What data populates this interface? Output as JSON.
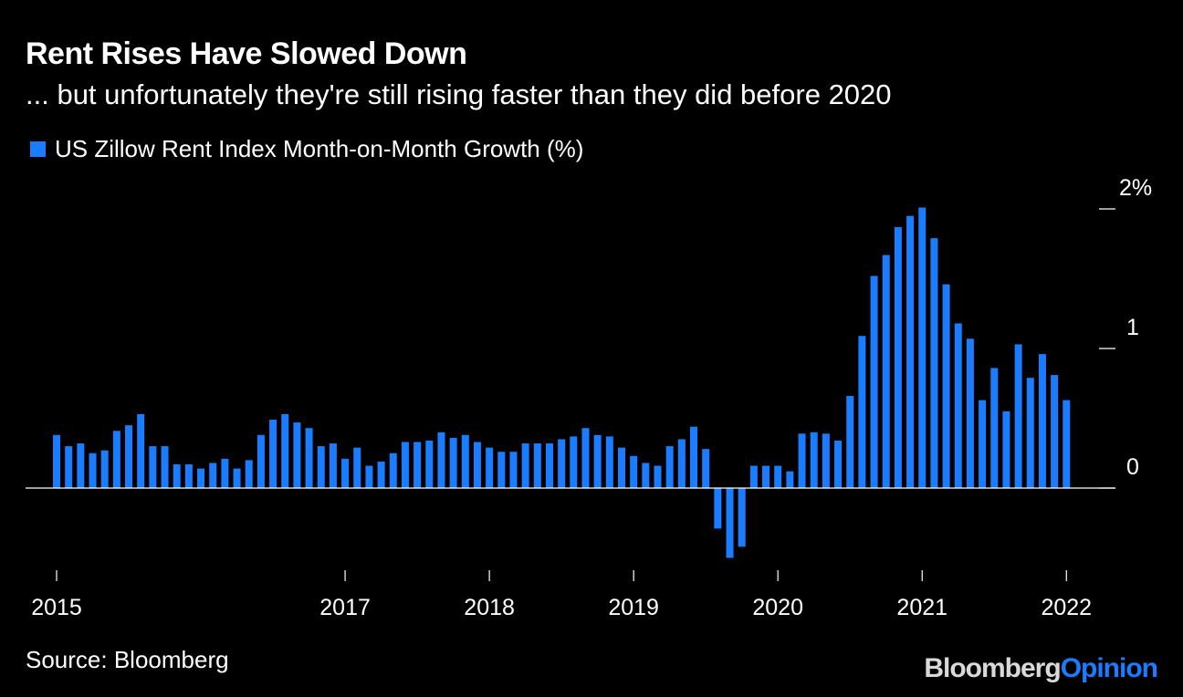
{
  "title": "Rent Rises Have Slowed Down",
  "subtitle": "... but unfortunately they're still rising faster than they did before 2020",
  "source": "Source: Bloomberg",
  "logo": {
    "part1": "Bloomberg",
    "part2": "Opinion"
  },
  "colors": {
    "background": "#000000",
    "bar": "#1a7cff",
    "text": "#ffffff",
    "axis": "#ffffff"
  },
  "chart_data": {
    "type": "bar",
    "series": [
      {
        "name": "US Zillow Rent Index Month-on-Month Growth (%)",
        "start_month": "2015-01",
        "values": [
          0.38,
          0.3,
          0.32,
          0.25,
          0.27,
          0.41,
          0.45,
          0.53,
          0.3,
          0.3,
          0.17,
          0.17,
          0.14,
          0.18,
          0.21,
          0.14,
          0.2,
          0.38,
          0.49,
          0.53,
          0.47,
          0.43,
          0.3,
          0.32,
          0.21,
          0.29,
          0.16,
          0.19,
          0.25,
          0.33,
          0.33,
          0.34,
          0.4,
          0.36,
          0.38,
          0.33,
          0.29,
          0.26,
          0.26,
          0.32,
          0.32,
          0.32,
          0.35,
          0.37,
          0.43,
          0.38,
          0.37,
          0.29,
          0.23,
          0.18,
          0.16,
          0.3,
          0.35,
          0.44,
          0.28,
          -0.29,
          -0.5,
          -0.42,
          0.16,
          0.16,
          0.16,
          0.12,
          0.39,
          0.4,
          0.39,
          0.34,
          0.66,
          1.09,
          1.52,
          1.67,
          1.87,
          1.95,
          2.01,
          1.79,
          1.46,
          1.18,
          1.07,
          0.63,
          0.86,
          0.55,
          1.03,
          0.79,
          0.96,
          0.81,
          0.63
        ]
      }
    ],
    "x_tick_labels": [
      "2015",
      "2017",
      "2018",
      "2019",
      "2020",
      "2021",
      "2022"
    ],
    "x_tick_months": [
      "2015-01",
      "2017-01",
      "2018-01",
      "2019-01",
      "2020-01",
      "2021-01",
      "2022-01"
    ],
    "y_tick_labels": [
      "2%",
      "1",
      "0"
    ],
    "y_tick_values": [
      2,
      1,
      0
    ],
    "ylim": [
      -0.6,
      2.1
    ],
    "grid": false,
    "legend_position": "top-left"
  }
}
